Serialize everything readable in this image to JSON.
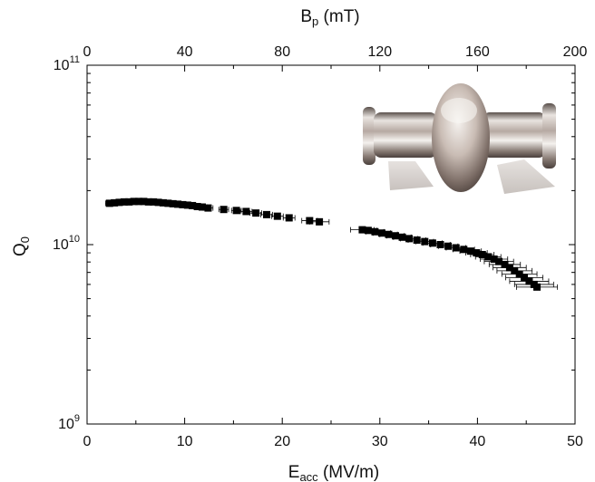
{
  "chart_data": {
    "type": "scatter",
    "xlabel": "E",
    "xlabel_sub": "acc",
    "xlabel_unit": " (MV/m)",
    "top_xlabel": "B",
    "top_xlabel_sub": "p",
    "top_xlabel_unit": " (mT)",
    "ylabel": "Q",
    "ylabel_sub": "0",
    "xlim": [
      0,
      50
    ],
    "top_xlim": [
      0,
      200
    ],
    "ylim": [
      1000000000.0,
      100000000000.0
    ],
    "yscale": "log",
    "x_ticks": [
      "0",
      "10",
      "20",
      "30",
      "40",
      "50"
    ],
    "top_x_ticks": [
      "0",
      "40",
      "80",
      "120",
      "160",
      "200"
    ],
    "y_ticks": [
      {
        "base": "10",
        "exp": "9"
      },
      {
        "base": "10",
        "exp": "10"
      },
      {
        "base": "10",
        "exp": "11"
      }
    ],
    "marker_color": "#000000",
    "inset_image": "cavity-photo",
    "series": [
      {
        "points": [
          [
            2.3,
            17000000000.0,
            0.4
          ],
          [
            2.8,
            17100000000.0,
            0.4
          ],
          [
            3.3,
            17200000000.0,
            0.4
          ],
          [
            3.8,
            17300000000.0,
            0.4
          ],
          [
            4.3,
            17300000000.0,
            0.4
          ],
          [
            4.8,
            17400000000.0,
            0.4
          ],
          [
            5.3,
            17400000000.0,
            0.4
          ],
          [
            5.8,
            17400000000.0,
            0.4
          ],
          [
            6.3,
            17300000000.0,
            0.4
          ],
          [
            6.8,
            17300000000.0,
            0.4
          ],
          [
            7.3,
            17200000000.0,
            0.4
          ],
          [
            7.8,
            17100000000.0,
            0.4
          ],
          [
            8.3,
            17000000000.0,
            0.4
          ],
          [
            8.8,
            16900000000.0,
            0.4
          ],
          [
            9.3,
            16800000000.0,
            0.4
          ],
          [
            9.8,
            16700000000.0,
            0.4
          ],
          [
            10.3,
            16600000000.0,
            0.4
          ],
          [
            10.8,
            16500000000.0,
            0.4
          ],
          [
            11.3,
            16300000000.0,
            0.5
          ],
          [
            11.8,
            16200000000.0,
            0.5
          ],
          [
            12.4,
            16000000000.0,
            0.5
          ],
          [
            14.0,
            15700000000.0,
            0.5
          ],
          [
            15.3,
            15500000000.0,
            0.5
          ],
          [
            16.3,
            15300000000.0,
            0.6
          ],
          [
            17.3,
            15000000000.0,
            0.6
          ],
          [
            18.4,
            14700000000.0,
            0.6
          ],
          [
            19.5,
            14400000000.0,
            0.6
          ],
          [
            20.7,
            14100000000.0,
            0.6
          ],
          [
            22.8,
            13600000000.0,
            0.8
          ],
          [
            23.8,
            13400000000.0,
            1.0
          ],
          [
            28.2,
            12100000000.0,
            1.2
          ],
          [
            28.8,
            12000000000.0,
            0.9
          ],
          [
            29.5,
            11800000000.0,
            0.9
          ],
          [
            30.2,
            11600000000.0,
            0.9
          ],
          [
            30.9,
            11400000000.0,
            0.9
          ],
          [
            31.6,
            11200000000.0,
            0.9
          ],
          [
            32.3,
            11000000000.0,
            0.9
          ],
          [
            33.0,
            10800000000.0,
            0.9
          ],
          [
            33.8,
            10600000000.0,
            0.9
          ],
          [
            34.6,
            10400000000.0,
            0.9
          ],
          [
            35.4,
            10200000000.0,
            1.0
          ],
          [
            36.2,
            10000000000.0,
            1.0
          ],
          [
            37.0,
            9800000000.0,
            1.0
          ],
          [
            37.8,
            9600000000.0,
            1.0
          ],
          [
            38.6,
            9400000000.0,
            1.1
          ],
          [
            39.3,
            9200000000.0,
            1.1
          ],
          [
            39.9,
            9000000000.0,
            1.1
          ],
          [
            40.5,
            8800000000.0,
            1.2
          ],
          [
            41.1,
            8550000000.0,
            1.3
          ],
          [
            41.7,
            8300000000.0,
            1.4
          ],
          [
            42.2,
            8050000000.0,
            1.5
          ],
          [
            42.8,
            7750000000.0,
            1.6
          ],
          [
            43.3,
            7450000000.0,
            1.7
          ],
          [
            43.8,
            7150000000.0,
            1.8
          ],
          [
            44.3,
            6850000000.0,
            1.8
          ],
          [
            44.8,
            6550000000.0,
            1.9
          ],
          [
            45.3,
            6250000000.0,
            2.0
          ],
          [
            45.8,
            6000000000.0,
            2.0
          ],
          [
            46.1,
            5800000000.0,
            2.1
          ]
        ]
      }
    ]
  }
}
